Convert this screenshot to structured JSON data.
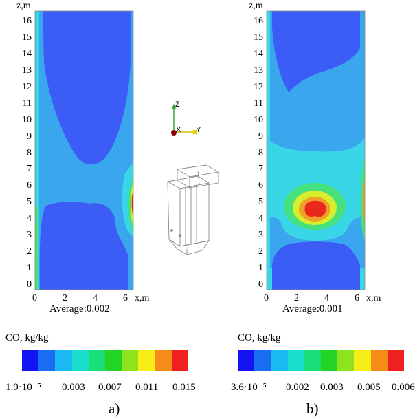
{
  "panel_a": {
    "z_axis_label": "z,m",
    "x_axis_label": "x,m",
    "z_ticks": [
      "16",
      "15",
      "14",
      "13",
      "12",
      "11",
      "10",
      "9",
      "8",
      "7",
      "6",
      "5",
      "4",
      "3",
      "2",
      "1",
      "0"
    ],
    "x_ticks": [
      "0",
      "2",
      "4",
      "6"
    ],
    "average": "Average:0.002",
    "colorbar_title": "CO, kg/kg",
    "colorbar_ticks": [
      "1.9·10⁻⁵",
      "0.003",
      "0.007",
      "0.011",
      "0.015"
    ],
    "caption": "a)"
  },
  "panel_b": {
    "z_axis_label": "z,m",
    "x_axis_label": "x,m",
    "z_ticks": [
      "16",
      "15",
      "14",
      "13",
      "12",
      "11",
      "10",
      "9",
      "8",
      "7",
      "6",
      "5",
      "4",
      "3",
      "2",
      "1",
      "0"
    ],
    "x_ticks": [
      "0",
      "2",
      "4",
      "6"
    ],
    "average": "Average:0.001",
    "colorbar_title": "CO, kg/kg",
    "colorbar_ticks": [
      "3.6·10⁻⁵",
      "0.002",
      "0.003",
      "0.005",
      "0.006"
    ],
    "caption": "b)"
  },
  "triad": {
    "z": "Z",
    "x": "X",
    "y": "Y"
  },
  "colormap": [
    "#1414f0",
    "#1a6cf0",
    "#19b9f4",
    "#18dccc",
    "#1ade78",
    "#24d424",
    "#8ee41c",
    "#f6ee16",
    "#f48c18",
    "#f02020"
  ],
  "field_colors": {
    "blue": "#3b5cf5",
    "lightblue": "#3aa6ee",
    "cyan": "#38d6e6",
    "green": "#46e07c",
    "yellow": "#d6ee2c",
    "orange": "#f0a028",
    "red": "#e8281c"
  }
}
